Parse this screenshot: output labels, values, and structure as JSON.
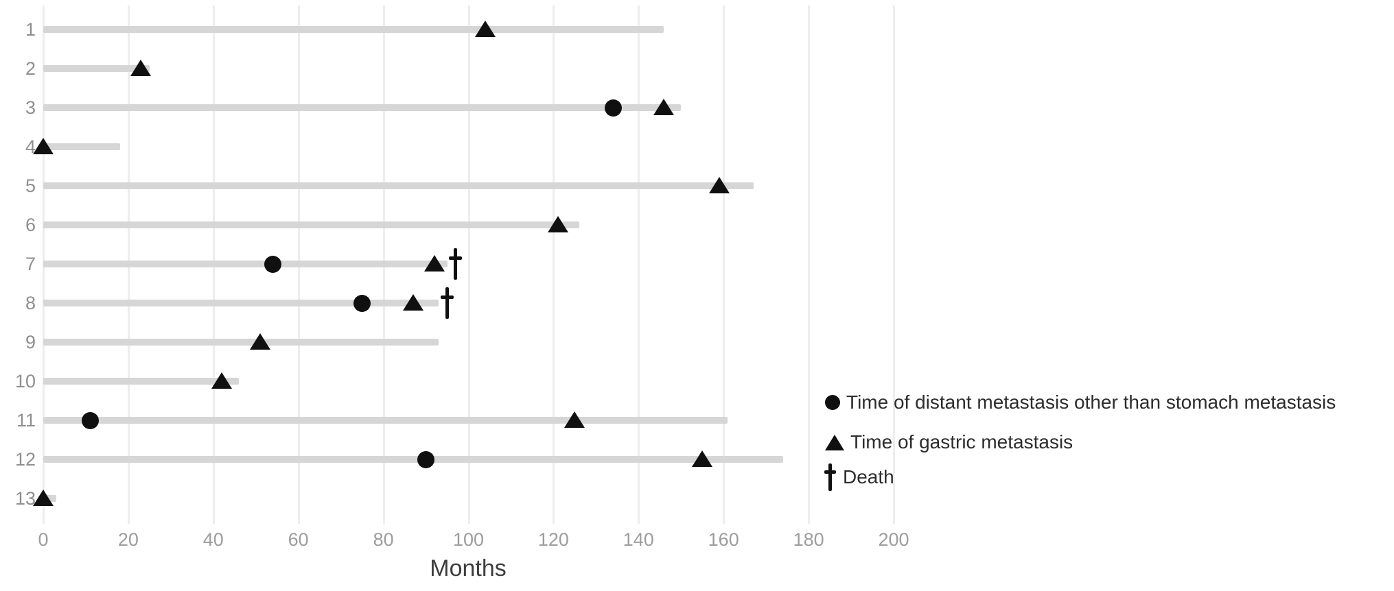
{
  "chart_data": {
    "type": "bar",
    "subtype": "swimmer-plot",
    "orientation": "horizontal",
    "title": "",
    "xlabel": "Months",
    "ylabel": "",
    "xlim": [
      0,
      200
    ],
    "xticks": [
      0,
      20,
      40,
      60,
      80,
      100,
      120,
      140,
      160,
      180,
      200
    ],
    "grid": true,
    "legend_position": "right-bottom",
    "colors": {
      "bar": "#d6d6d6",
      "grid": "#ededed",
      "marker": "#101010",
      "row_label": "#8f8f8f",
      "tick_label": "#9d9d9d",
      "axis_title": "#3d3d3d",
      "legend_text": "#2d2d2d",
      "background": "#ffffff"
    },
    "categories": [
      "1",
      "2",
      "3",
      "4",
      "5",
      "6",
      "7",
      "8",
      "9",
      "10",
      "11",
      "12",
      "13"
    ],
    "patients": [
      {
        "id": "1",
        "followup_months": 146,
        "distant_metastasis_months": null,
        "gastric_metastasis_months": 104,
        "death_months": null
      },
      {
        "id": "2",
        "followup_months": 25,
        "distant_metastasis_months": null,
        "gastric_metastasis_months": 23,
        "death_months": null
      },
      {
        "id": "3",
        "followup_months": 150,
        "distant_metastasis_months": 134,
        "gastric_metastasis_months": 146,
        "death_months": null
      },
      {
        "id": "4",
        "followup_months": 18,
        "distant_metastasis_months": null,
        "gastric_metastasis_months": 0,
        "death_months": null
      },
      {
        "id": "5",
        "followup_months": 167,
        "distant_metastasis_months": null,
        "gastric_metastasis_months": 159,
        "death_months": null
      },
      {
        "id": "6",
        "followup_months": 126,
        "distant_metastasis_months": null,
        "gastric_metastasis_months": 121,
        "death_months": null
      },
      {
        "id": "7",
        "followup_months": 95,
        "distant_metastasis_months": 54,
        "gastric_metastasis_months": 92,
        "death_months": 97
      },
      {
        "id": "8",
        "followup_months": 93,
        "distant_metastasis_months": 75,
        "gastric_metastasis_months": 87,
        "death_months": 95
      },
      {
        "id": "9",
        "followup_months": 93,
        "distant_metastasis_months": null,
        "gastric_metastasis_months": 51,
        "death_months": null
      },
      {
        "id": "10",
        "followup_months": 46,
        "distant_metastasis_months": null,
        "gastric_metastasis_months": 42,
        "death_months": null
      },
      {
        "id": "11",
        "followup_months": 161,
        "distant_metastasis_months": 11,
        "gastric_metastasis_months": 125,
        "death_months": null
      },
      {
        "id": "12",
        "followup_months": 174,
        "distant_metastasis_months": 90,
        "gastric_metastasis_months": 155,
        "death_months": null
      },
      {
        "id": "13",
        "followup_months": 3,
        "distant_metastasis_months": null,
        "gastric_metastasis_months": 0,
        "death_months": null
      }
    ],
    "legend": [
      {
        "marker": "circle",
        "label": "Time of distant metastasis other than stomach metastasis"
      },
      {
        "marker": "triangle",
        "label": "Time of gastric metastasis"
      },
      {
        "marker": "dagger",
        "label": "Death"
      }
    ]
  }
}
